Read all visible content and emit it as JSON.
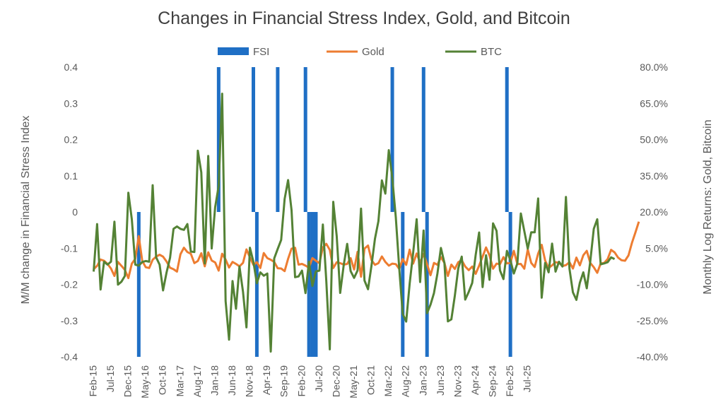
{
  "chart_data": {
    "type": "bar+line",
    "title": "Changes in Financial Stress Index, Gold, and Bitcoin",
    "ylabel_left": "M/M change in Financial Stress Index",
    "ylabel_right": "Monthly Log Returns: Gold, Bitcoin",
    "ylim_left": [
      -0.4,
      0.4
    ],
    "ylim_right": [
      -40,
      80
    ],
    "yticks_left": [
      "0.4",
      "0.3",
      "0.2",
      "0.1",
      "0",
      "-0.1",
      "-0.2",
      "-0.3",
      "-0.4"
    ],
    "yticks_right": [
      "80.0%",
      "65.0%",
      "50.0%",
      "35.0%",
      "20.0%",
      "5.0%",
      "-10.0%",
      "-25.0%",
      "-40.0%"
    ],
    "xticks": [
      "Feb-15",
      "Jul-15",
      "Dec-15",
      "May-16",
      "Oct-16",
      "Mar-17",
      "Aug-17",
      "Jan-18",
      "Jun-18",
      "Nov-18",
      "Apr-19",
      "Sep-19",
      "Feb-20",
      "Jul-20",
      "Dec-20",
      "May-21",
      "Oct-21",
      "Mar-22",
      "Aug-22",
      "Jan-23",
      "Jun-23",
      "Nov-23",
      "Apr-24",
      "Sep-24",
      "Feb-25",
      "Jul-25"
    ],
    "legend": [
      {
        "name": "FSI",
        "color": "#1f6fc5",
        "kind": "bar"
      },
      {
        "name": "Gold",
        "color": "#ed7d31",
        "kind": "line"
      },
      {
        "name": "BTC",
        "color": "#548235",
        "kind": "line"
      }
    ],
    "start_month": "Feb-15",
    "fsi_spikes": [
      {
        "month": "Mar-16",
        "value": -0.4
      },
      {
        "month": "Feb-18",
        "value": 0.4
      },
      {
        "month": "Dec-18",
        "value": 0.4
      },
      {
        "month": "Jan-19",
        "value": -0.4
      },
      {
        "month": "Jul-19",
        "value": 0.4
      },
      {
        "month": "Mar-20",
        "value": 0.4
      },
      {
        "month": "Apr-20",
        "value": -0.4
      },
      {
        "month": "May-20",
        "value": -0.4
      },
      {
        "month": "Jun-20",
        "value": -0.4
      },
      {
        "month": "Apr-22",
        "value": 0.4
      },
      {
        "month": "Jul-22",
        "value": -0.4
      },
      {
        "month": "Jan-23",
        "value": 0.4
      },
      {
        "month": "Feb-23",
        "value": -0.4
      },
      {
        "month": "Jan-25",
        "value": 0.4
      },
      {
        "month": "Feb-25",
        "value": -0.4
      }
    ],
    "gold": [
      -3.7,
      -2.3,
      0.3,
      -0.2,
      -1.5,
      -3.4,
      -6.5,
      -0.7,
      -2.3,
      -4,
      -7.4,
      -1.4,
      0.6,
      10,
      -0.3,
      -2.9,
      -3.2,
      0.2,
      1.5,
      2.3,
      1.5,
      -0.5,
      -3.1,
      -3.7,
      -4.7,
      2.5,
      5.2,
      3.4,
      2.7,
      -1.2,
      -0.3,
      2.9,
      -2.5,
      3.3,
      -0.1,
      -0.9,
      -4.3,
      2.7,
      0.3,
      -3,
      -0.7,
      -1.5,
      -2.5,
      -1.1,
      4.5,
      1.2,
      -1.9,
      -0.8,
      -3.2,
      3,
      0.9,
      0.2,
      -0.7,
      -3.3,
      -3.4,
      -4.5,
      0.6,
      4.8,
      5.2,
      -1.8,
      -1.5,
      -2.2,
      -3.1,
      0.9,
      -0.2,
      -1.2,
      5.3,
      6.8,
      4.3,
      -3.2,
      -0.8,
      -1.2,
      -1.8,
      -1.5,
      0.9,
      -3.8,
      3.5,
      -6.8,
      4.8,
      6.1,
      0.1,
      -1.9,
      -1.2,
      1.6,
      -0.7,
      -2.2,
      -1.4,
      -1.6,
      -3.6,
      0.5,
      -1.9,
      4.4,
      -1.4,
      2.8,
      -0.9,
      2.6,
      -1.6,
      -6.2,
      -1.1,
      -1.9,
      1.3,
      -1.1,
      -6.5,
      -1.8,
      -3.6,
      -0.8,
      0,
      -2.6,
      -4.1,
      -2.6,
      -5.6,
      -2.2,
      1.5,
      5.3,
      2,
      -3.5,
      -1.4,
      -1.6,
      1.3,
      -1.3,
      -1.1,
      3.9,
      -1.6,
      -1.5,
      -3.5,
      4.5,
      -1.1,
      -2.8,
      2.8,
      6.4,
      -0.1,
      -3.2,
      -2.1,
      -0.8,
      -1,
      -2.4,
      -2,
      -0.8,
      -3.4,
      1.1,
      -2.1,
      2.1,
      3.9,
      -1.1,
      -2.9,
      -5.2,
      -1.3,
      -1.1,
      0.5,
      4.3,
      3.3,
      1.1,
      0,
      -0.2,
      2,
      7.2,
      11.5,
      16
    ],
    "btc": [
      -4.7,
      15,
      -12.1,
      -0.6,
      -1.8,
      -0.6,
      16,
      -10.1,
      -8.9,
      -6.5,
      28,
      17,
      -1.8,
      -2.2,
      -0.7,
      -0.3,
      -0.6,
      31.1,
      1.2,
      -1.8,
      -12.5,
      -5.1,
      1,
      13,
      14,
      13,
      12.6,
      15,
      3.6,
      3.4,
      45.4,
      36.4,
      -1.3,
      43.2,
      4.9,
      22,
      30.8,
      69,
      -16.9,
      -32.9,
      -8.6,
      -20.1,
      -2.6,
      -13,
      -27.8,
      5.2,
      -0.6,
      -9.5,
      -5,
      -6.4,
      -5.5,
      -37.8,
      0.8,
      4.7,
      8.4,
      25.4,
      33.2,
      20.7,
      -7,
      -6.7,
      -4.3,
      -13.6,
      -0.6,
      -10.6,
      -4.6,
      -4.3,
      14.8,
      -8.8,
      -36.9,
      24.2,
      10,
      -13.5,
      -2,
      6.8,
      -4.5,
      -7.3,
      -4.2,
      21.4,
      -8.4,
      -12,
      -2.2,
      8.9,
      16.2,
      33.1,
      27.6,
      45.6,
      33.8,
      17.8,
      -3.5,
      -22.2,
      -25.4,
      -9.7,
      3,
      17,
      -9,
      12.3,
      -21.9,
      -18.4,
      -13.6,
      -5.5,
      5.1,
      -1.1,
      -25.3,
      -24.5,
      -14.7,
      -3.3,
      1.5,
      -16.3,
      -13.1,
      -9.4,
      2.2,
      11.5,
      -11.1,
      2.1,
      -8.1,
      15.3,
      12.2,
      -4.2,
      -7.8,
      3.9,
      0,
      -5.5,
      -1.3,
      19.4,
      12.1,
      4.8,
      11.6,
      11.6,
      25.6,
      -15.5,
      -1.1,
      -5,
      6.9,
      -4.7,
      -0.6,
      -2.6,
      26.2,
      -3.5,
      -13.3,
      -16.4,
      -9.3,
      -5,
      -11.6,
      -0.6,
      13,
      17,
      -1.7,
      -1.3,
      -0.8,
      1.2,
      0.5
    ]
  }
}
